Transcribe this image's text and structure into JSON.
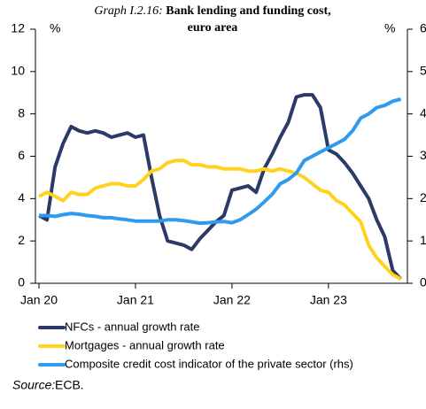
{
  "chart_data": {
    "type": "line",
    "title_label": "Graph I.2.16:",
    "title": "Bank lending and funding cost, euro area",
    "ylabel": "%",
    "y2label": "%",
    "x": [
      "2020-01",
      "2020-02",
      "2020-03",
      "2020-04",
      "2020-05",
      "2020-06",
      "2020-07",
      "2020-08",
      "2020-09",
      "2020-10",
      "2020-11",
      "2020-12",
      "2021-01",
      "2021-02",
      "2021-03",
      "2021-04",
      "2021-05",
      "2021-06",
      "2021-07",
      "2021-08",
      "2021-09",
      "2021-10",
      "2021-11",
      "2021-12",
      "2022-01",
      "2022-02",
      "2022-03",
      "2022-04",
      "2022-05",
      "2022-06",
      "2022-07",
      "2022-08",
      "2022-09",
      "2022-10",
      "2022-11",
      "2022-12",
      "2023-01",
      "2023-02",
      "2023-03",
      "2023-04",
      "2023-05",
      "2023-06",
      "2023-07",
      "2023-08",
      "2023-09",
      "2023-10"
    ],
    "xticks": [
      {
        "value": "2020-01",
        "label": "Jan 20"
      },
      {
        "value": "2021-01",
        "label": "Jan 21"
      },
      {
        "value": "2022-01",
        "label": "Jan 22"
      },
      {
        "value": "2023-01",
        "label": "Jan 23"
      }
    ],
    "ylim": [
      0,
      12
    ],
    "yticks": [
      0,
      2,
      4,
      6,
      8,
      10,
      12
    ],
    "y2lim": [
      0,
      6
    ],
    "y2ticks": [
      0,
      1,
      2,
      3,
      4,
      5,
      6
    ],
    "series": [
      {
        "name": "NFCs - annual growth rate",
        "color": "#2b3a67",
        "values": [
          3.2,
          3.0,
          5.5,
          6.6,
          7.4,
          7.2,
          7.1,
          7.2,
          7.1,
          6.9,
          7.0,
          7.1,
          6.9,
          7.0,
          5.0,
          3.2,
          2.0,
          1.9,
          1.8,
          1.6,
          2.1,
          2.5,
          2.9,
          3.2,
          4.4,
          4.5,
          4.6,
          4.3,
          5.4,
          6.1,
          6.9,
          7.6,
          8.8,
          8.9,
          8.9,
          8.3,
          6.3,
          6.1,
          5.7,
          5.2,
          4.6,
          4.0,
          3.0,
          2.2,
          0.6,
          0.2
        ]
      },
      {
        "name": "Mortgages - annual growth rate",
        "color": "#ffd21f",
        "values": [
          4.1,
          4.3,
          4.1,
          3.9,
          4.3,
          4.2,
          4.2,
          4.5,
          4.6,
          4.7,
          4.7,
          4.6,
          4.6,
          4.9,
          5.3,
          5.4,
          5.7,
          5.8,
          5.8,
          5.6,
          5.6,
          5.5,
          5.5,
          5.4,
          5.4,
          5.4,
          5.3,
          5.3,
          5.4,
          5.3,
          5.4,
          5.3,
          5.2,
          5.0,
          4.7,
          4.4,
          4.3,
          3.9,
          3.7,
          3.3,
          2.9,
          1.8,
          1.2,
          0.8,
          0.4,
          0.2
        ]
      },
      {
        "name": "Composite credit cost indicator of the private sector (rhs)",
        "color": "#2f9bf0",
        "axis": "y2",
        "values": [
          1.6,
          1.6,
          1.58,
          1.62,
          1.65,
          1.63,
          1.6,
          1.58,
          1.55,
          1.55,
          1.52,
          1.5,
          1.47,
          1.47,
          1.47,
          1.47,
          1.5,
          1.5,
          1.48,
          1.45,
          1.42,
          1.43,
          1.45,
          1.46,
          1.43,
          1.5,
          1.62,
          1.75,
          1.92,
          2.1,
          2.35,
          2.45,
          2.6,
          2.9,
          3.0,
          3.1,
          3.2,
          3.3,
          3.4,
          3.6,
          3.9,
          4.0,
          4.15,
          4.2,
          4.3,
          4.35
        ]
      }
    ],
    "source_label": "Source:",
    "source": "ECB."
  }
}
